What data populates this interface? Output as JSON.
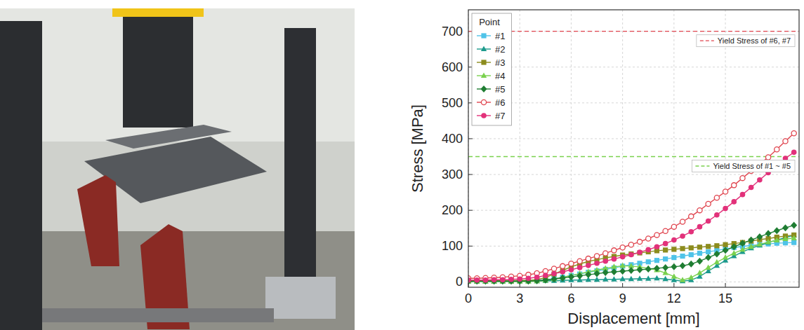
{
  "chart_data": {
    "type": "line",
    "x_label": "Displacement [mm]",
    "y_label": "Stress [MPa]",
    "legend_title": "Point",
    "legend": "top-left",
    "grid": true,
    "xlim": [
      0,
      19.3
    ],
    "ylim": [
      -15,
      760
    ],
    "xticks": [
      0,
      3,
      6,
      9,
      12,
      15
    ],
    "yticks": [
      0,
      100,
      200,
      300,
      400,
      500,
      600,
      700
    ],
    "x": [
      0,
      0.5,
      1,
      1.5,
      2,
      2.5,
      3,
      3.5,
      4,
      4.5,
      5,
      5.5,
      6,
      6.5,
      7,
      7.5,
      8,
      8.5,
      9,
      9.5,
      10,
      10.5,
      11,
      11.5,
      12,
      12.5,
      13,
      13.5,
      14,
      14.5,
      15,
      15.5,
      16,
      16.5,
      17,
      17.5,
      18,
      18.5,
      19
    ],
    "series": [
      {
        "name": "#1",
        "color": "#4fc3e8",
        "marker": "square",
        "values": [
          2,
          2,
          2,
          2,
          2,
          2,
          3,
          3,
          4,
          6,
          9,
          13,
          18,
          22,
          27,
          31,
          35,
          39,
          44,
          48,
          52,
          56,
          60,
          64,
          68,
          72,
          76,
          80,
          84,
          88,
          92,
          96,
          99,
          102,
          104,
          106,
          108,
          109,
          110
        ]
      },
      {
        "name": "#2",
        "color": "#1c9a8c",
        "marker": "triangle",
        "values": [
          1,
          1,
          1,
          1,
          1,
          1,
          2,
          2,
          2,
          3,
          3,
          4,
          5,
          5,
          6,
          6,
          7,
          7,
          8,
          8,
          9,
          9,
          10,
          8,
          5,
          2,
          5,
          15,
          30,
          45,
          60,
          72,
          84,
          94,
          102,
          110,
          117,
          124,
          130
        ]
      },
      {
        "name": "#3",
        "color": "#8c8c1e",
        "marker": "square",
        "values": [
          3,
          3,
          3,
          3,
          3,
          3,
          4,
          4,
          6,
          12,
          22,
          32,
          42,
          50,
          57,
          62,
          67,
          71,
          75,
          78,
          81,
          84,
          87,
          89,
          91,
          93,
          95,
          97,
          99,
          101,
          104,
          107,
          110,
          114,
          118,
          121,
          125,
          128,
          131
        ]
      },
      {
        "name": "#4",
        "color": "#7ad14e",
        "marker": "triangle",
        "values": [
          1,
          1,
          1,
          1,
          1,
          1,
          1,
          1,
          2,
          4,
          8,
          13,
          18,
          23,
          28,
          33,
          38,
          42,
          45,
          44,
          42,
          38,
          33,
          25,
          15,
          5,
          12,
          25,
          40,
          55,
          68,
          80,
          90,
          98,
          105,
          111,
          116,
          120,
          122
        ]
      },
      {
        "name": "#5",
        "color": "#1f7d32",
        "marker": "diamond",
        "values": [
          2,
          2,
          2,
          2,
          2,
          2,
          2,
          2,
          3,
          5,
          8,
          11,
          14,
          17,
          20,
          23,
          26,
          28,
          30,
          32,
          34,
          36,
          38,
          40,
          42,
          45,
          50,
          58,
          68,
          78,
          88,
          98,
          108,
          117,
          126,
          135,
          143,
          151,
          158
        ]
      },
      {
        "name": "#6",
        "color": "#e0454f",
        "marker": "open-circle",
        "values": [
          10,
          10,
          11,
          12,
          13,
          15,
          17,
          20,
          24,
          30,
          37,
          44,
          51,
          58,
          65,
          72,
          80,
          88,
          96,
          104,
          112,
          121,
          131,
          142,
          154,
          168,
          183,
          200,
          218,
          235,
          252,
          270,
          290,
          310,
          330,
          348,
          370,
          393,
          415
        ]
      },
      {
        "name": "#7",
        "color": "#e2317a",
        "marker": "circle",
        "values": [
          5,
          5,
          5,
          6,
          6,
          7,
          8,
          10,
          13,
          18,
          23,
          28,
          34,
          40,
          46,
          52,
          58,
          64,
          70,
          76,
          83,
          90,
          98,
          107,
          117,
          128,
          140,
          154,
          170,
          187,
          205,
          224,
          244,
          264,
          285,
          305,
          325,
          345,
          362
        ]
      }
    ],
    "annotations": [
      {
        "text": "Yield Stress of #6, #7",
        "y": 700,
        "color": "#e0454f",
        "line_style": "dashed"
      },
      {
        "text": "Yield Stress of #1 ~ #5",
        "y": 350,
        "color": "#7ad14e",
        "line_style": "dashed"
      }
    ]
  }
}
